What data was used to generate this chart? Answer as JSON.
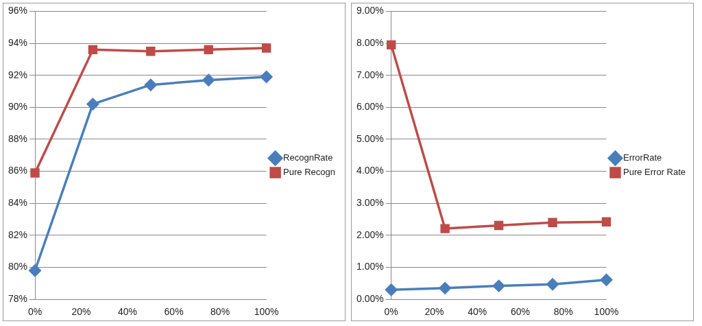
{
  "chart_data": [
    {
      "type": "line",
      "x": [
        0,
        25,
        50,
        75,
        100
      ],
      "xlim": [
        0,
        100
      ],
      "xticks": [
        {
          "value": 0,
          "label": "0%"
        },
        {
          "value": 20,
          "label": "20%"
        },
        {
          "value": 40,
          "label": "40%"
        },
        {
          "value": 60,
          "label": "60%"
        },
        {
          "value": 80,
          "label": "80%"
        },
        {
          "value": 100,
          "label": "100%"
        }
      ],
      "ylim": [
        78,
        96
      ],
      "yticks": [
        {
          "value": 78,
          "label": "78%"
        },
        {
          "value": 80,
          "label": "80%"
        },
        {
          "value": 82,
          "label": "82%"
        },
        {
          "value": 84,
          "label": "84%"
        },
        {
          "value": 86,
          "label": "86%"
        },
        {
          "value": 88,
          "label": "88%"
        },
        {
          "value": 90,
          "label": "90%"
        },
        {
          "value": 92,
          "label": "92%"
        },
        {
          "value": 94,
          "label": "94%"
        },
        {
          "value": 96,
          "label": "96%"
        }
      ],
      "grid": "y",
      "legend": "right",
      "series": [
        {
          "name": "RecognRate",
          "color": "#4a7ebb",
          "marker": "diamond",
          "values": [
            79.8,
            90.2,
            91.4,
            91.7,
            91.9
          ]
        },
        {
          "name": "Pure Recogn",
          "color": "#be4b48",
          "marker": "square",
          "values": [
            85.9,
            93.6,
            93.5,
            93.6,
            93.7
          ]
        }
      ]
    },
    {
      "type": "line",
      "x": [
        0,
        25,
        50,
        75,
        100
      ],
      "xlim": [
        0,
        100
      ],
      "xticks": [
        {
          "value": 0,
          "label": "0%"
        },
        {
          "value": 20,
          "label": "20%"
        },
        {
          "value": 40,
          "label": "40%"
        },
        {
          "value": 60,
          "label": "60%"
        },
        {
          "value": 80,
          "label": "80%"
        },
        {
          "value": 100,
          "label": "100%"
        }
      ],
      "ylim": [
        0,
        9
      ],
      "yticks": [
        {
          "value": 0,
          "label": "0.00%"
        },
        {
          "value": 1,
          "label": "1.00%"
        },
        {
          "value": 2,
          "label": "2.00%"
        },
        {
          "value": 3,
          "label": "3.00%"
        },
        {
          "value": 4,
          "label": "4.00%"
        },
        {
          "value": 5,
          "label": "5.00%"
        },
        {
          "value": 6,
          "label": "6.00%"
        },
        {
          "value": 7,
          "label": "7.00%"
        },
        {
          "value": 8,
          "label": "8.00%"
        },
        {
          "value": 9,
          "label": "9.00%"
        }
      ],
      "grid": "y",
      "legend": "right",
      "series": [
        {
          "name": "ErrorRate",
          "color": "#4a7ebb",
          "marker": "diamond",
          "values": [
            0.3,
            0.35,
            0.42,
            0.47,
            0.61
          ]
        },
        {
          "name": "Pure Error Rate",
          "color": "#be4b48",
          "marker": "square",
          "values": [
            7.95,
            2.21,
            2.31,
            2.4,
            2.42
          ]
        }
      ]
    }
  ]
}
